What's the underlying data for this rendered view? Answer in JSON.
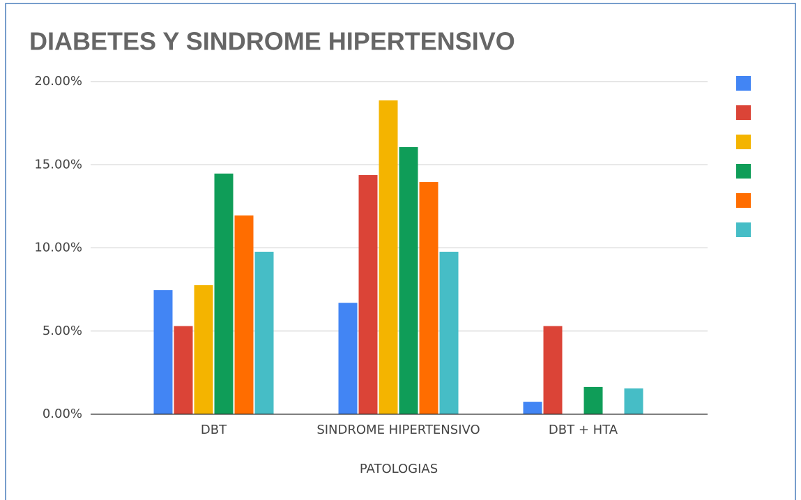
{
  "chart_data": {
    "type": "bar",
    "title": "DIABETES Y SINDROME HIPERTENSIVO",
    "x_label": "PATOLOGIAS",
    "categories": [
      "DBT",
      "SINDROME HIPERTENSIVO",
      "DBT + HTA"
    ],
    "series": [
      {
        "color": "#4285f4",
        "values": [
          7.46,
          6.7,
          0.75
        ]
      },
      {
        "color": "#db4437",
        "values": [
          5.3,
          14.38,
          5.3
        ]
      },
      {
        "color": "#f4b400",
        "values": [
          7.76,
          18.87,
          0
        ]
      },
      {
        "color": "#0f9d58",
        "values": [
          14.47,
          16.06,
          1.64
        ]
      },
      {
        "color": "#ff6d00",
        "values": [
          11.95,
          13.96,
          0
        ]
      },
      {
        "color": "#46bdc6",
        "values": [
          9.77,
          9.77,
          1.55
        ]
      }
    ],
    "ylim": [
      0,
      20
    ],
    "yticks": [
      {
        "value": 0,
        "label": "0.00%"
      },
      {
        "value": 5,
        "label": "5.00%"
      },
      {
        "value": 10,
        "label": "10.00%"
      },
      {
        "value": 15,
        "label": "15.00%"
      },
      {
        "value": 20,
        "label": "20.00%"
      }
    ],
    "grid": true,
    "legend": "right"
  }
}
